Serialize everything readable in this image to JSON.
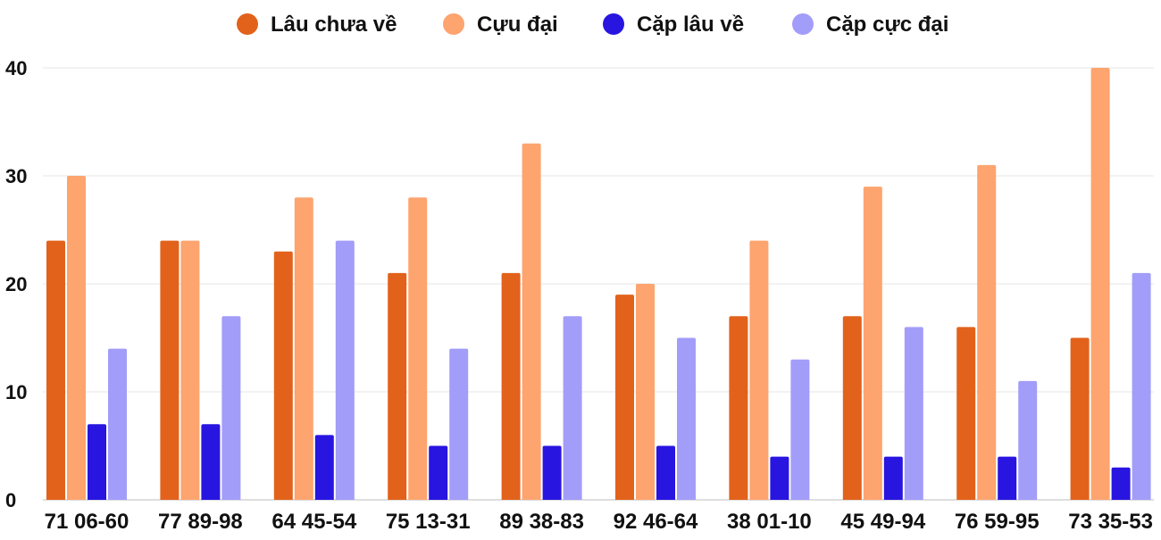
{
  "chart_data": {
    "type": "bar",
    "title": "",
    "xlabel": "",
    "ylabel": "",
    "ylim": [
      0,
      40
    ],
    "yticks": [
      0,
      10,
      20,
      30,
      40
    ],
    "grid": true,
    "legend_position": "top-center",
    "categories": [
      "71 06-60",
      "77 89-98",
      "64 45-54",
      "75 13-31",
      "89 38-83",
      "92 46-64",
      "38 01-10",
      "45 49-94",
      "76 59-95",
      "73 35-53"
    ],
    "series": [
      {
        "name": "Lâu chưa về",
        "color": "#E2621B",
        "values": [
          24,
          24,
          23,
          21,
          21,
          19,
          17,
          17,
          16,
          15
        ]
      },
      {
        "name": "Cựu đại",
        "color": "#FDA46F",
        "values": [
          30,
          24,
          28,
          28,
          33,
          20,
          24,
          29,
          31,
          40
        ]
      },
      {
        "name": "Cặp lâu về",
        "color": "#2815E0",
        "values": [
          7,
          7,
          6,
          5,
          5,
          5,
          4,
          4,
          4,
          3
        ]
      },
      {
        "name": "Cặp cực đại",
        "color": "#A29DF9",
        "values": [
          14,
          17,
          24,
          14,
          17,
          15,
          13,
          16,
          11,
          21
        ]
      }
    ]
  }
}
